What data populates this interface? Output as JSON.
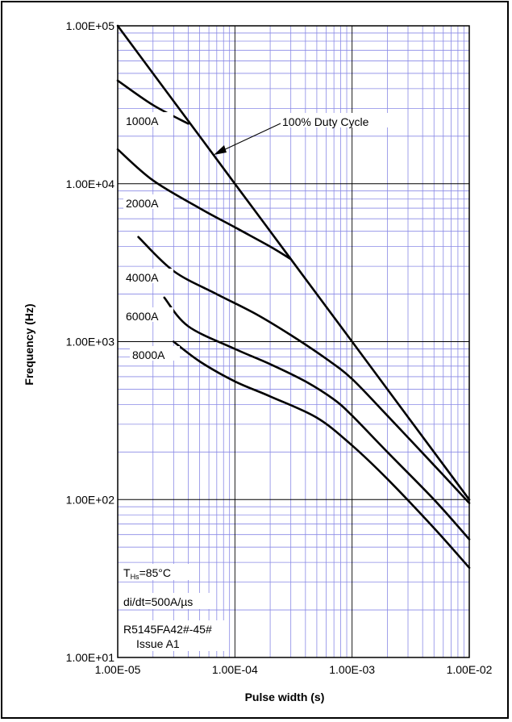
{
  "chart_data": {
    "type": "line",
    "title": "",
    "xlabel": "Pulse width (s)",
    "ylabel": "Frequency (Hz)",
    "x_scale": "log",
    "y_scale": "log",
    "xlim": [
      1e-05,
      0.01
    ],
    "ylim": [
      10,
      100000
    ],
    "x_ticks": [
      "1.00E-05",
      "1.00E-04",
      "1.00E-03",
      "1.00E-02"
    ],
    "y_ticks": [
      "1.00E+05",
      "1.00E+04",
      "1.00E+03",
      "1.00E+02",
      "1.00E+01"
    ],
    "grid": true,
    "series": [
      {
        "name": "100% Duty Cycle",
        "x": [
          1e-05,
          3e-05,
          0.0001,
          0.0003,
          0.001,
          0.003,
          0.01
        ],
        "y": [
          100000,
          33333,
          10000,
          3333,
          1000,
          333,
          100
        ]
      },
      {
        "name": "1000A",
        "x": [
          1e-05,
          2e-05,
          4e-05
        ],
        "y": [
          45000,
          31500,
          24000
        ]
      },
      {
        "name": "2000A",
        "x": [
          1e-05,
          2e-05,
          5e-05,
          0.0001,
          0.0002,
          0.0003
        ],
        "y": [
          16500,
          10500,
          7000,
          5300,
          4000,
          3333
        ]
      },
      {
        "name": "4000A",
        "x": [
          1.5e-05,
          3e-05,
          7e-05,
          0.00015,
          0.0003,
          0.0006,
          0.001,
          0.002,
          0.005,
          0.01
        ],
        "y": [
          4600,
          2800,
          2000,
          1500,
          1100,
          780,
          580,
          340,
          165,
          95
        ]
      },
      {
        "name": "6000A",
        "x": [
          2.5e-05,
          4e-05,
          0.0001,
          0.0002,
          0.0004,
          0.0007,
          0.001,
          0.002,
          0.005,
          0.01
        ],
        "y": [
          1900,
          1250,
          900,
          720,
          560,
          430,
          340,
          200,
          100,
          56
        ]
      },
      {
        "name": "8000A",
        "x": [
          3e-05,
          5e-05,
          0.0001,
          0.0002,
          0.0005,
          0.001,
          0.002,
          0.005,
          0.01
        ],
        "y": [
          1000,
          750,
          560,
          450,
          330,
          220,
          135,
          66,
          37
        ]
      }
    ],
    "annotations": {
      "duty": "100% Duty Cycle",
      "temp_main": "T",
      "temp_sub": "Hs",
      "temp_rest": "=85°C",
      "didt": "di/dt=500A/µs",
      "part": "R5145FA42#-45#",
      "issue": "Issue A1"
    },
    "colors": {
      "minor_grid": "#8a8ae6",
      "major_grid": "#000000",
      "curve": "#000000"
    }
  }
}
